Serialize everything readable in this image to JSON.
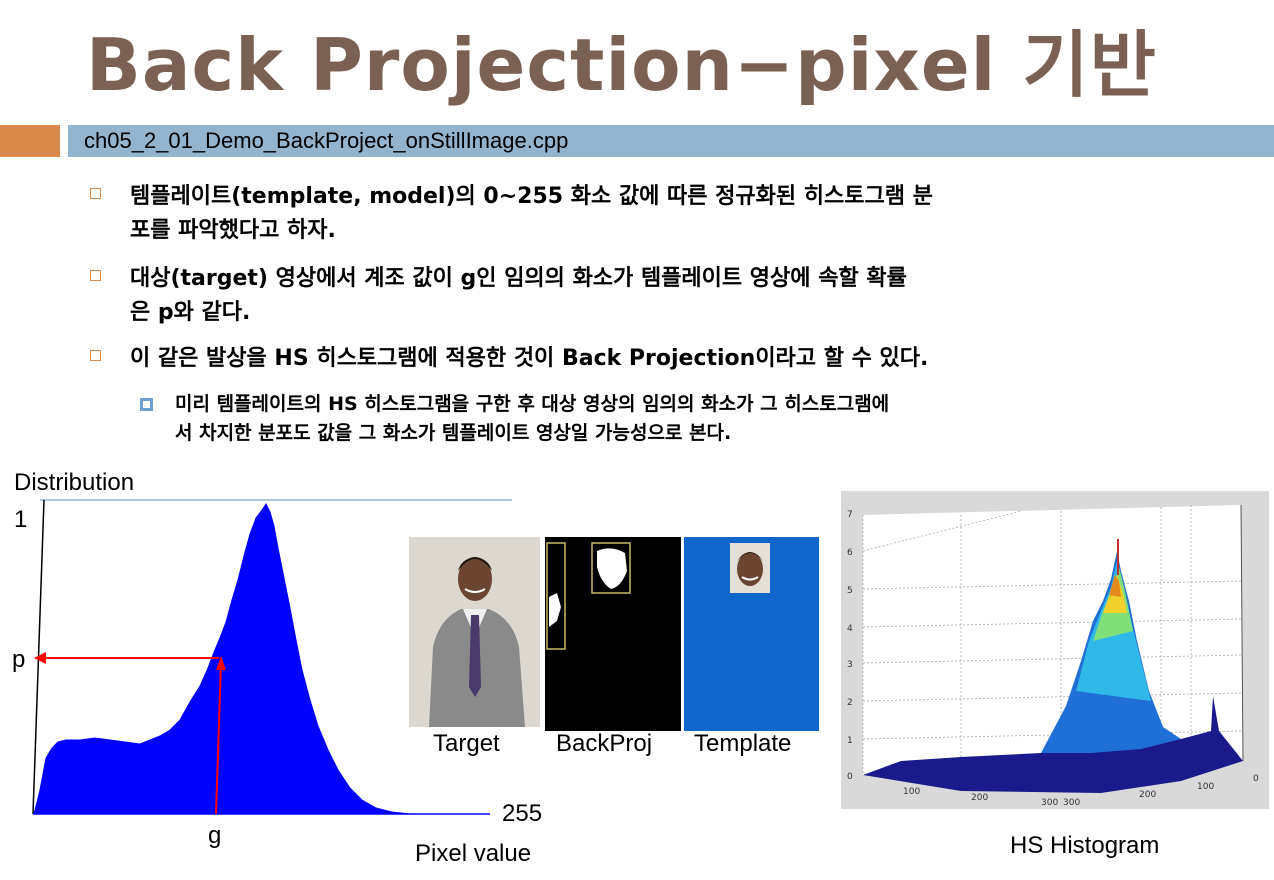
{
  "title": "Back Projection−pixel 기반",
  "filename": "ch05_2_01_Demo_BackProject_onStillImage.cpp",
  "bullets": [
    {
      "line1": "템플레이트(template, model)의 0~255 화소 값에 따른 정규화된 히스토그램 분",
      "line2": "포를 파악했다고 하자."
    },
    {
      "line1": "대상(target) 영상에서 계조 값이 g인 임의의 화소가 템플레이트 영상에 속할 확률",
      "line2": "은 p와 같다."
    },
    {
      "line1": "이 같은 발상을 HS 히스토그램에 적용한 것이 Back Projection이라고 할 수 있다.",
      "line2": ""
    }
  ],
  "sub_bullet": {
    "line1": "미리 템플레이트의 HS 히스토그램을 구한 후 대상 영상의 임의의 화소가 그 히스토그램에",
    "line2": "서 차지한 분포도 값을 그 화소가 템플레이트 영상일 가능성으로 본다."
  },
  "diagram": {
    "ylabel": "Distribution",
    "y_top": "1",
    "p_label": "p",
    "g_label": "g",
    "x_end": "255",
    "xlabel": "Pixel value"
  },
  "images": {
    "target": "Target",
    "backproj": "BackProj",
    "template": "Template"
  },
  "hs_caption": "HS Histogram",
  "hs_axes": {
    "z_ticks": [
      "0",
      "1",
      "2",
      "3",
      "4",
      "5",
      "6",
      "7"
    ],
    "x_ticks": [
      "100",
      "200",
      "300"
    ],
    "y_ticks": [
      "300",
      "200",
      "100",
      "0"
    ]
  },
  "colors": {
    "title": "#7a6153",
    "histogram": "#0000ff",
    "arrow": "#ff0000",
    "bar": "#93b4cf",
    "accent": "#d98a4a"
  }
}
